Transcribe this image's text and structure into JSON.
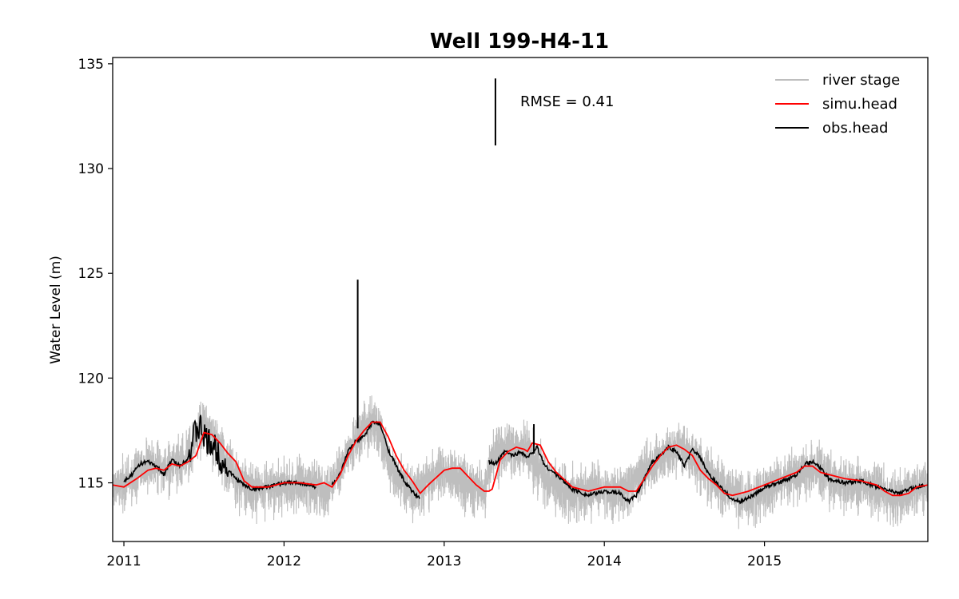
{
  "chart_data": {
    "type": "line",
    "title": "Well 199-H4-11",
    "xlabel": "",
    "ylabel": "Water Level (m)",
    "xlim": [
      2010.93,
      2016.02
    ],
    "ylim": [
      112.2,
      135.3
    ],
    "x_ticks": [
      {
        "value": 2011,
        "label": "2011"
      },
      {
        "value": 2012,
        "label": "2012"
      },
      {
        "value": 2013,
        "label": "2013"
      },
      {
        "value": 2014,
        "label": "2014"
      },
      {
        "value": 2015,
        "label": "2015"
      }
    ],
    "y_ticks": [
      {
        "value": 115,
        "label": "115"
      },
      {
        "value": 120,
        "label": "120"
      },
      {
        "value": 125,
        "label": "125"
      },
      {
        "value": 130,
        "label": "130"
      },
      {
        "value": 135,
        "label": "135"
      }
    ],
    "annotation": "RMSE = 0.41",
    "legend": {
      "position": "top-right"
    },
    "grid": false,
    "series": [
      {
        "name": "river stage",
        "color": "#bebebe",
        "x": [
          2010.93,
          2011.05,
          2011.15,
          2011.25,
          2011.32,
          2011.38,
          2011.42,
          2011.46,
          2011.5,
          2011.55,
          2011.6,
          2011.65,
          2011.72,
          2011.8,
          2011.9,
          2012.0,
          2012.1,
          2012.2,
          2012.27,
          2012.33,
          2012.4,
          2012.45,
          2012.5,
          2012.55,
          2012.6,
          2012.65,
          2012.72,
          2012.8,
          2012.9,
          2013.0,
          2013.1,
          2013.2,
          2013.25,
          2013.3,
          2013.35,
          2013.4,
          2013.45,
          2013.52,
          2013.58,
          2013.65,
          2013.75,
          2013.85,
          2013.95,
          2014.05,
          2014.15,
          2014.2,
          2014.3,
          2014.4,
          2014.47,
          2014.55,
          2014.65,
          2014.75,
          2014.85,
          2014.95,
          2015.05,
          2015.15,
          2015.22,
          2015.3,
          2015.4,
          2015.5,
          2015.6,
          2015.7,
          2015.8,
          2015.9,
          2016.02
        ],
        "values": [
          114.8,
          115.3,
          115.9,
          115.7,
          116.0,
          116.1,
          116.6,
          117.6,
          117.9,
          117.3,
          116.6,
          115.9,
          115.0,
          114.7,
          114.8,
          114.9,
          115.0,
          114.9,
          114.7,
          115.5,
          116.5,
          117.1,
          117.6,
          117.9,
          117.3,
          116.1,
          115.1,
          114.5,
          115.2,
          115.6,
          115.2,
          114.8,
          114.6,
          116.2,
          116.5,
          116.8,
          116.6,
          116.7,
          115.9,
          115.2,
          114.7,
          114.6,
          114.8,
          114.6,
          114.6,
          115.3,
          116.0,
          116.5,
          116.8,
          116.2,
          115.5,
          114.8,
          114.3,
          114.4,
          114.9,
          115.3,
          115.5,
          115.8,
          115.3,
          115.0,
          115.0,
          114.8,
          114.3,
          114.6,
          114.9
        ]
      },
      {
        "name": "simu.head",
        "color": "#ff0000",
        "x": [
          2010.93,
          2011.0,
          2011.08,
          2011.15,
          2011.2,
          2011.25,
          2011.3,
          2011.35,
          2011.4,
          2011.45,
          2011.5,
          2011.55,
          2011.6,
          2011.65,
          2011.7,
          2011.75,
          2011.8,
          2011.9,
          2012.0,
          2012.1,
          2012.2,
          2012.25,
          2012.3,
          2012.35,
          2012.4,
          2012.45,
          2012.5,
          2012.55,
          2012.6,
          2012.65,
          2012.7,
          2012.75,
          2012.8,
          2012.85,
          2012.9,
          2013.0,
          2013.05,
          2013.1,
          2013.15,
          2013.2,
          2013.25,
          2013.28,
          2013.3,
          2013.35,
          2013.4,
          2013.45,
          2013.5,
          2013.52,
          2013.55,
          2013.6,
          2013.65,
          2013.7,
          2013.8,
          2013.9,
          2014.0,
          2014.1,
          2014.15,
          2014.2,
          2014.25,
          2014.3,
          2014.35,
          2014.4,
          2014.45,
          2014.5,
          2014.55,
          2014.6,
          2014.65,
          2014.7,
          2014.75,
          2014.8,
          2014.85,
          2014.9,
          2015.0,
          2015.1,
          2015.2,
          2015.25,
          2015.3,
          2015.35,
          2015.4,
          2015.5,
          2015.6,
          2015.7,
          2015.75,
          2015.8,
          2015.85,
          2015.9,
          2015.95,
          2016.02
        ],
        "values": [
          114.9,
          114.8,
          115.2,
          115.6,
          115.7,
          115.6,
          115.9,
          115.8,
          116.0,
          116.3,
          117.4,
          117.3,
          116.9,
          116.4,
          116.0,
          115.1,
          114.8,
          114.8,
          115.0,
          115.0,
          114.9,
          115.0,
          114.8,
          115.4,
          116.3,
          117.0,
          117.5,
          117.9,
          117.9,
          117.2,
          116.3,
          115.6,
          115.1,
          114.5,
          114.9,
          115.6,
          115.7,
          115.7,
          115.3,
          114.9,
          114.6,
          114.6,
          114.7,
          116.1,
          116.5,
          116.7,
          116.6,
          116.5,
          116.9,
          116.8,
          116.0,
          115.5,
          114.8,
          114.6,
          114.8,
          114.8,
          114.6,
          114.6,
          115.2,
          115.8,
          116.3,
          116.7,
          116.8,
          116.6,
          116.3,
          115.6,
          115.2,
          114.9,
          114.5,
          114.4,
          114.5,
          114.6,
          114.9,
          115.2,
          115.5,
          115.8,
          115.8,
          115.5,
          115.4,
          115.2,
          115.1,
          114.9,
          114.6,
          114.4,
          114.4,
          114.5,
          114.8,
          114.9
        ]
      },
      {
        "name": "obs.head",
        "color": "#000000",
        "x": [
          2011.0,
          2011.05,
          2011.1,
          2011.15,
          2011.2,
          2011.25,
          2011.3,
          2011.35,
          2011.4,
          2011.45,
          2011.48,
          2011.52,
          2011.56,
          2011.6,
          2011.65,
          2011.7,
          2011.75,
          2011.8,
          2011.9,
          2012.0,
          2012.1,
          2012.2,
          null,
          2012.3,
          2012.35,
          2012.4,
          2012.45,
          2012.5,
          2012.55,
          2012.6,
          2012.65,
          2012.7,
          2012.75,
          2012.8,
          2012.85,
          null,
          2013.28,
          2013.32,
          2013.38,
          2013.43,
          2013.48,
          2013.52,
          2013.58,
          2013.63,
          2013.7,
          2013.8,
          2013.9,
          2014.0,
          2014.1,
          2014.15,
          2014.2,
          2014.25,
          2014.3,
          2014.35,
          2014.4,
          2014.45,
          2014.5,
          2014.55,
          2014.6,
          2014.65,
          2014.7,
          2014.75,
          2014.8,
          2014.85,
          2014.9,
          2014.95,
          2015.0,
          2015.1,
          2015.2,
          2015.25,
          2015.3,
          2015.35,
          2015.4,
          2015.5,
          2015.6,
          2015.7,
          2015.8,
          2015.85,
          2015.9,
          2015.95,
          2016.0
        ],
        "values": [
          115.1,
          115.4,
          115.9,
          116.0,
          115.8,
          115.4,
          116.1,
          115.8,
          116.2,
          117.5,
          117.6,
          116.9,
          116.8,
          116.2,
          115.6,
          115.2,
          114.9,
          114.7,
          114.8,
          115.0,
          115.0,
          114.8,
          null,
          114.9,
          115.4,
          116.5,
          117.0,
          117.2,
          117.9,
          117.8,
          116.6,
          115.8,
          115.1,
          114.6,
          114.2,
          null,
          116.0,
          115.9,
          116.5,
          116.3,
          116.5,
          116.2,
          116.7,
          115.8,
          115.4,
          114.7,
          114.4,
          114.6,
          114.5,
          114.1,
          114.4,
          115.2,
          116.0,
          116.3,
          116.7,
          116.5,
          115.8,
          116.6,
          116.2,
          115.4,
          115.0,
          114.6,
          114.2,
          114.1,
          114.3,
          114.5,
          114.8,
          115.0,
          115.4,
          115.9,
          116.0,
          115.7,
          115.2,
          115.0,
          115.1,
          114.8,
          114.6,
          114.5,
          114.7,
          114.8,
          114.9
        ]
      }
    ]
  }
}
